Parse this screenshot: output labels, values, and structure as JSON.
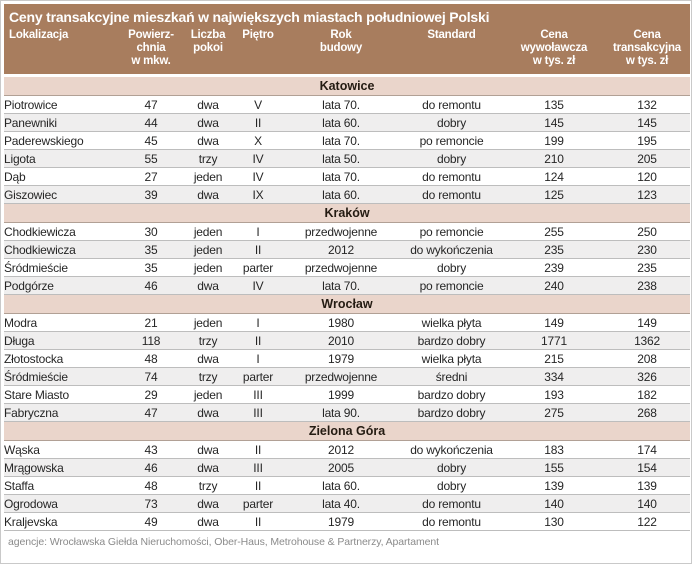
{
  "chart_data": {
    "type": "table",
    "title": "Ceny transakcyjne mieszkań w największych miastach południowej Polski",
    "columns": [
      "Lokalizacja",
      "Powierzchnia w mkw.",
      "Liczba pokoi",
      "Piętro",
      "Rok budowy",
      "Standard",
      "Cena wywoławcza w tys. zł",
      "Cena transakcyjna w tys. zł"
    ],
    "column_keys": [
      "lokalizacja",
      "powierzchnia",
      "liczba-pokoi",
      "pietro",
      "rok-budowy",
      "standard",
      "cena-wywolawcza",
      "cena-transakcyjna"
    ],
    "sections": [
      {
        "city": "Katowice",
        "rows": [
          [
            "Piotrowice",
            "47",
            "dwa",
            "V",
            "lata 70.",
            "do remontu",
            "135",
            "132"
          ],
          [
            "Panewniki",
            "44",
            "dwa",
            "II",
            "lata 60.",
            "dobry",
            "145",
            "145"
          ],
          [
            "Paderewskiego",
            "45",
            "dwa",
            "X",
            "lata 70.",
            "po remoncie",
            "199",
            "195"
          ],
          [
            "Ligota",
            "55",
            "trzy",
            "IV",
            "lata 50.",
            "dobry",
            "210",
            "205"
          ],
          [
            "Dąb",
            "27",
            "jeden",
            "IV",
            "lata 70.",
            "do remontu",
            "124",
            "120"
          ],
          [
            "Giszowiec",
            "39",
            "dwa",
            "IX",
            "lata 60.",
            "do remontu",
            "125",
            "123"
          ]
        ]
      },
      {
        "city": "Kraków",
        "rows": [
          [
            "Chodkiewicza",
            "30",
            "jeden",
            "I",
            "przedwojenne",
            "po remoncie",
            "255",
            "250"
          ],
          [
            "Chodkiewicza",
            "35",
            "jeden",
            "II",
            "2012",
            "do wykończenia",
            "235",
            "230"
          ],
          [
            "Śródmieście",
            "35",
            "jeden",
            "parter",
            "przedwojenne",
            "dobry",
            "239",
            "235"
          ],
          [
            "Podgórze",
            "46",
            "dwa",
            "IV",
            "lata 70.",
            "po remoncie",
            "240",
            "238"
          ]
        ]
      },
      {
        "city": "Wrocław",
        "rows": [
          [
            "Modra",
            "21",
            "jeden",
            "I",
            "1980",
            "wielka płyta",
            "149",
            "149"
          ],
          [
            "Długa",
            "118",
            "trzy",
            "II",
            "2010",
            "bardzo dobry",
            "1771",
            "1362"
          ],
          [
            "Złotostocka",
            "48",
            "dwa",
            "I",
            "1979",
            "wielka płyta",
            "215",
            "208"
          ],
          [
            "Śródmieście",
            "74",
            "trzy",
            "parter",
            "przedwojenne",
            "średni",
            "334",
            "326"
          ],
          [
            "Stare Miasto",
            "29",
            "jeden",
            "III",
            "1999",
            "bardzo dobry",
            "193",
            "182"
          ],
          [
            "Fabryczna",
            "47",
            "dwa",
            "III",
            "lata 90.",
            "bardzo dobry",
            "275",
            "268"
          ]
        ]
      },
      {
        "city": "Zielona Góra",
        "rows": [
          [
            "Wąska",
            "43",
            "dwa",
            "II",
            "2012",
            "do wykończenia",
            "183",
            "174"
          ],
          [
            "Mrągowska",
            "46",
            "dwa",
            "III",
            "2005",
            "dobry",
            "155",
            "154"
          ],
          [
            "Staffa",
            "48",
            "trzy",
            "II",
            "lata 60.",
            "dobry",
            "139",
            "139"
          ],
          [
            "Ogrodowa",
            "73",
            "dwa",
            "parter",
            "lata 40.",
            "do remontu",
            "140",
            "140"
          ],
          [
            "Kraljevska",
            "49",
            "dwa",
            "II",
            "1979",
            "do remontu",
            "130",
            "122"
          ]
        ]
      }
    ]
  },
  "header_display": {
    "c0": "Lokalizacja",
    "c1": "Powierz-\nchnia\nw mkw.",
    "c2": "Liczba\npokoi",
    "c3": "Piętro",
    "c4": "Rok\nbudowy",
    "c5": "Standard",
    "c6": "Cena\nwywoławcza\nw tys. zł",
    "c7": "Cena\ntransakcyjna\nw tys. zł"
  },
  "footer": "agencje: Wrocławska Giełda Nieruchomości, Ober-Haus,  Metrohouse & Partnerzy, Apartament",
  "colors": {
    "header_brown": "#a87d5e",
    "header_text": "#ffffff",
    "section_pink": "#ead5cb",
    "section_text": "#241b12",
    "row_white": "#ffffff",
    "row_alt_gray": "#efeeee",
    "row_border": "#bdbdbd",
    "body_text": "#262626",
    "footer_text": "#8b8b8b",
    "outer_border": "#c9c9c9"
  }
}
